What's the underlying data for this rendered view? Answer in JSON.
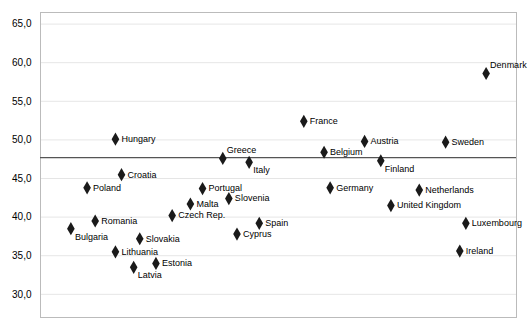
{
  "chart_data": {
    "type": "scatter",
    "labels": [
      "Bulgaria",
      "Romania",
      "Lithuania",
      "Latvia",
      "Estonia",
      "Slovakia",
      "Poland",
      "Croatia",
      "Hungary",
      "Czech Rep.",
      "Malta",
      "Portugal",
      "Slovenia",
      "Cyprus",
      "Greece",
      "Italy",
      "Spain",
      "France",
      "Belgium",
      "Germany",
      "Austria",
      "Finland",
      "United Kingdom",
      "Netherlands",
      "Sweden",
      "Luxembourg",
      "Ireland",
      "Denmark"
    ],
    "x": [
      1.0,
      2.2,
      3.2,
      4.1,
      5.2,
      4.4,
      1.8,
      3.5,
      3.2,
      6.0,
      6.9,
      7.5,
      8.8,
      9.2,
      8.5,
      9.8,
      10.3,
      12.5,
      13.5,
      13.8,
      15.5,
      16.3,
      16.8,
      18.2,
      19.5,
      20.5,
      20.2,
      21.5
    ],
    "values": [
      38.5,
      39.5,
      35.5,
      33.5,
      34.0,
      37.2,
      43.8,
      45.5,
      50.1,
      40.2,
      41.7,
      43.7,
      42.4,
      37.8,
      47.6,
      47.1,
      39.2,
      52.4,
      48.4,
      43.8,
      49.8,
      47.3,
      41.5,
      43.5,
      49.7,
      39.2,
      35.6,
      58.6
    ],
    "color": "#1a1a1a",
    "marker": "diamond",
    "reference_line": {
      "y": 47.7,
      "color": "#555555"
    },
    "xlim": [
      -0.5,
      23.0
    ],
    "xticks": [],
    "ylim": [
      27,
      66.5
    ],
    "yticks": [
      {
        "value": 30.0,
        "label": "30,0"
      },
      {
        "value": 35.0,
        "label": "35,0"
      },
      {
        "value": 40.0,
        "label": "40,0"
      },
      {
        "value": 45.0,
        "label": "45,0"
      },
      {
        "value": 50.0,
        "label": "50,0"
      },
      {
        "value": 55.0,
        "label": "55,0"
      },
      {
        "value": 60.0,
        "label": "60,0"
      },
      {
        "value": 65.0,
        "label": "65,0"
      }
    ],
    "grid": true,
    "tick_labels": "y"
  }
}
